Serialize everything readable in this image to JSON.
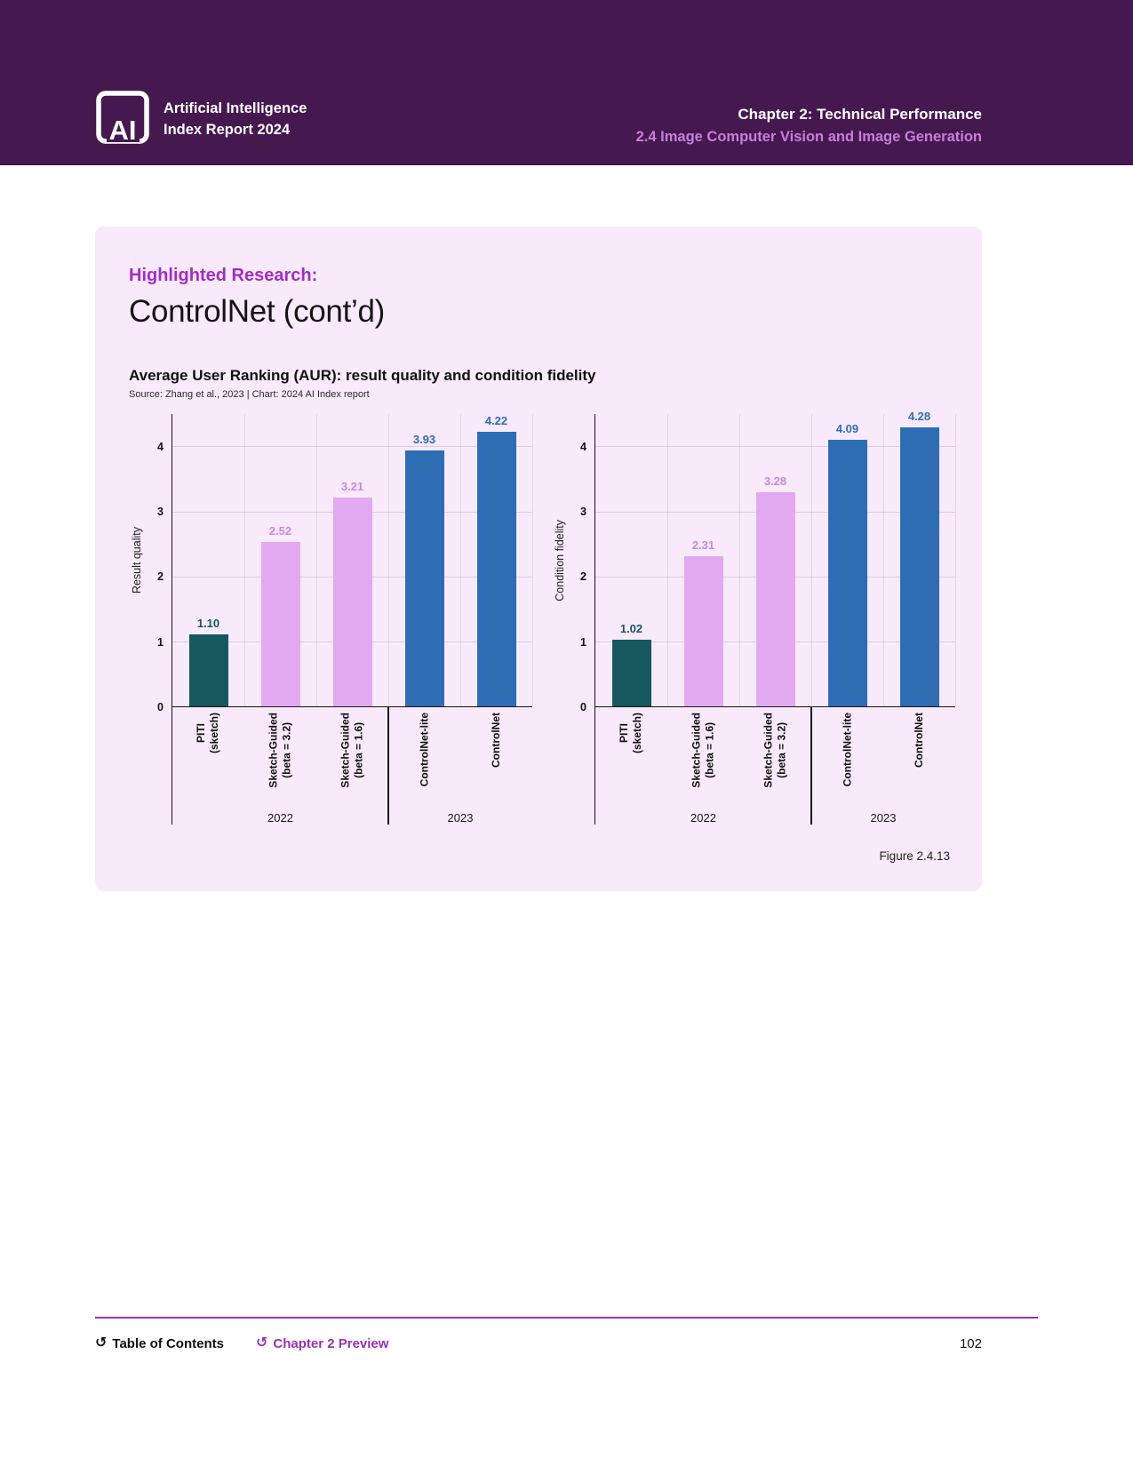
{
  "header": {
    "logo": "AI",
    "brand_line1": "Artificial Intelligence",
    "brand_line2": "Index Report 2024",
    "chapter": "Chapter 2: Technical Performance",
    "section": "2.4 Image Computer Vision and Image Generation"
  },
  "card": {
    "kicker": "Highlighted Research:",
    "title": "ControlNet (cont’d)",
    "chart_title": "Average User Ranking (AUR): result quality and condition fidelity",
    "chart_source": "Source: Zhang et al., 2023 | Chart: 2024 AI Index report",
    "figure_label": "Figure 2.4.13"
  },
  "chart_data": [
    {
      "type": "bar",
      "ylabel": "Result quality",
      "ylim": [
        0,
        4.5
      ],
      "yticks": [
        0,
        1,
        2,
        3,
        4
      ],
      "grid": true,
      "legend_position": "none",
      "categories": [
        [
          "PITI",
          "(sketch)"
        ],
        [
          "Sketch-Guided",
          "(beta = 3.2)"
        ],
        [
          "Sketch-Guided",
          "(beta = 1.6)"
        ],
        [
          "ControlNet-lite"
        ],
        [
          "ControlNet"
        ]
      ],
      "values": [
        1.1,
        2.52,
        3.21,
        3.93,
        4.22
      ],
      "value_labels": [
        "1.10",
        "2.52",
        "3.21",
        "3.93",
        "4.22"
      ],
      "bar_colors": [
        "#17575E",
        "#E2A9F1",
        "#E2A9F1",
        "#2E6DB4",
        "#2E6DB4"
      ],
      "label_colors": [
        "#17575E",
        "#CD85E2",
        "#CD85E2",
        "#2E6DB4",
        "#2E6DB4"
      ],
      "groups": [
        {
          "label": "2022",
          "span": 3
        },
        {
          "label": "2023",
          "span": 2
        }
      ]
    },
    {
      "type": "bar",
      "ylabel": "Condition fidelity",
      "ylim": [
        0,
        4.5
      ],
      "yticks": [
        0,
        1,
        2,
        3,
        4
      ],
      "grid": true,
      "legend_position": "none",
      "categories": [
        [
          "PITI",
          "(sketch)"
        ],
        [
          "Sketch-Guided",
          "(beta = 1.6)"
        ],
        [
          "Sketch-Guided",
          "(beta = 3.2)"
        ],
        [
          "ControlNet-lite"
        ],
        [
          "ControlNet"
        ]
      ],
      "values": [
        1.02,
        2.31,
        3.28,
        4.09,
        4.28
      ],
      "value_labels": [
        "1.02",
        "2.31",
        "3.28",
        "4.09",
        "4.28"
      ],
      "bar_colors": [
        "#17575E",
        "#E2A9F1",
        "#E2A9F1",
        "#2E6DB4",
        "#2E6DB4"
      ],
      "label_colors": [
        "#17575E",
        "#CD85E2",
        "#CD85E2",
        "#2E6DB4",
        "#2E6DB4"
      ],
      "groups": [
        {
          "label": "2022",
          "span": 3
        },
        {
          "label": "2023",
          "span": 2
        }
      ]
    }
  ],
  "footer": {
    "toc": "Table of Contents",
    "preview": "Chapter 2 Preview",
    "page": "102"
  },
  "colors": {
    "header_bg": "#451850",
    "accent_purple": "#A32CC4",
    "card_bg": "#F8EAFB",
    "divider_purple": "#9B30B8"
  }
}
